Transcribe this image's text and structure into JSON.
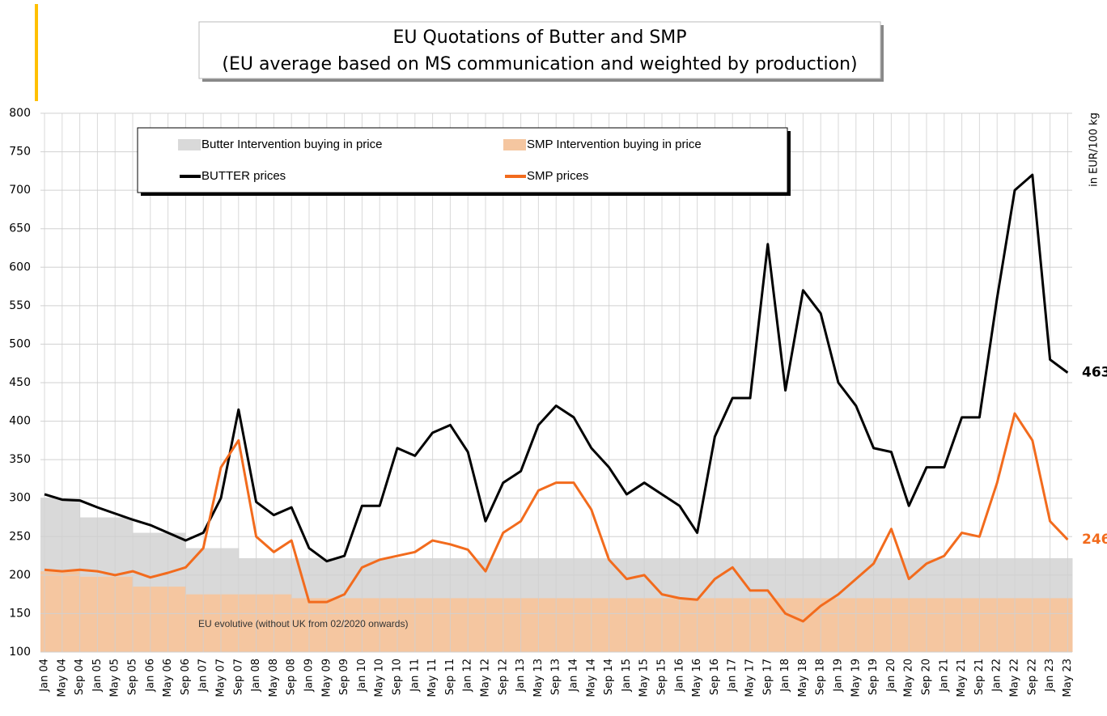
{
  "chart_data": {
    "type": "line",
    "title": "EU Quotations of Butter and SMP",
    "subtitle": "(EU average based on MS communication and weighted by production)",
    "y_axis_label": "in EUR/100 kg",
    "annotation": "EU evolutive (without UK from 02/2020 onwards)",
    "categories": [
      "Jan 04",
      "May 04",
      "Sep 04",
      "Jan 05",
      "May 05",
      "Sep 05",
      "Jan 06",
      "May 06",
      "Sep 06",
      "Jan 07",
      "May 07",
      "Sep 07",
      "Jan 08",
      "May 08",
      "Sep 08",
      "Jan 09",
      "May 09",
      "Sep 09",
      "Jan 10",
      "May 10",
      "Sep 10",
      "Jan 11",
      "May 11",
      "Sep 11",
      "Jan 12",
      "May 12",
      "Sep 12",
      "Jan 13",
      "May 13",
      "Sep 13",
      "Jan 14",
      "May 14",
      "Sep 14",
      "Jan 15",
      "May 15",
      "Sep 15",
      "Jan 16",
      "May 16",
      "Sep 16",
      "Jan 17",
      "May 17",
      "Sep 17",
      "Jan 18",
      "May 18",
      "Sep 18",
      "Jan 19",
      "May 19",
      "Sep 19",
      "Jan 20",
      "May 20",
      "Sep 20",
      "Jan 21",
      "May 21",
      "Sep 21",
      "Jan 22",
      "May 22",
      "Sep 22",
      "Jan 23",
      "May 23"
    ],
    "series": [
      {
        "name": "Butter Intervention buying in price",
        "type": "area",
        "color": "#d9d9d9",
        "values": [
          300,
          300,
          275,
          275,
          275,
          255,
          255,
          255,
          235,
          235,
          235,
          222,
          222,
          222,
          222,
          222,
          222,
          222,
          222,
          222,
          222,
          222,
          222,
          222,
          222,
          222,
          222,
          222,
          222,
          222,
          222,
          222,
          222,
          222,
          222,
          222,
          222,
          222,
          222,
          222,
          222,
          222,
          222,
          222,
          222,
          222,
          222,
          222,
          222,
          222,
          222,
          222,
          222,
          222,
          222,
          222,
          222,
          222,
          222
        ]
      },
      {
        "name": "SMP Intervention buying in price",
        "type": "area",
        "color": "#f5c6a0",
        "values": [
          205,
          205,
          198,
          198,
          198,
          185,
          185,
          185,
          175,
          175,
          175,
          175,
          175,
          175,
          170,
          170,
          170,
          170,
          170,
          170,
          170,
          170,
          170,
          170,
          170,
          170,
          170,
          170,
          170,
          170,
          170,
          170,
          170,
          170,
          170,
          170,
          170,
          170,
          170,
          170,
          170,
          170,
          170,
          170,
          170,
          170,
          170,
          170,
          170,
          170,
          170,
          170,
          170,
          170,
          170,
          170,
          170,
          170,
          170
        ]
      },
      {
        "name": "BUTTER prices",
        "type": "line",
        "color": "#000000",
        "last_value": 463,
        "values": [
          305,
          298,
          297,
          288,
          280,
          272,
          265,
          255,
          245,
          255,
          300,
          415,
          295,
          278,
          288,
          235,
          218,
          225,
          290,
          290,
          365,
          355,
          385,
          395,
          360,
          270,
          320,
          335,
          395,
          420,
          405,
          365,
          340,
          305,
          320,
          305,
          290,
          255,
          380,
          430,
          430,
          630,
          440,
          570,
          540,
          450,
          420,
          365,
          360,
          290,
          340,
          340,
          405,
          405,
          560,
          700,
          720,
          480,
          463
        ]
      },
      {
        "name": "SMP prices",
        "type": "line",
        "color": "#f26b1d",
        "last_value": 246,
        "values": [
          207,
          205,
          207,
          205,
          200,
          205,
          197,
          203,
          210,
          235,
          340,
          375,
          250,
          230,
          245,
          165,
          165,
          175,
          210,
          220,
          225,
          230,
          245,
          240,
          233,
          205,
          255,
          270,
          310,
          320,
          320,
          285,
          220,
          195,
          200,
          175,
          170,
          168,
          195,
          210,
          180,
          180,
          150,
          140,
          160,
          175,
          195,
          215,
          260,
          195,
          215,
          225,
          255,
          250,
          320,
          410,
          375,
          270,
          246
        ]
      }
    ],
    "ylim": [
      100,
      800
    ],
    "yticks": [
      100,
      150,
      200,
      250,
      300,
      350,
      400,
      450,
      500,
      550,
      600,
      650,
      700,
      750,
      800
    ],
    "grid": true
  }
}
